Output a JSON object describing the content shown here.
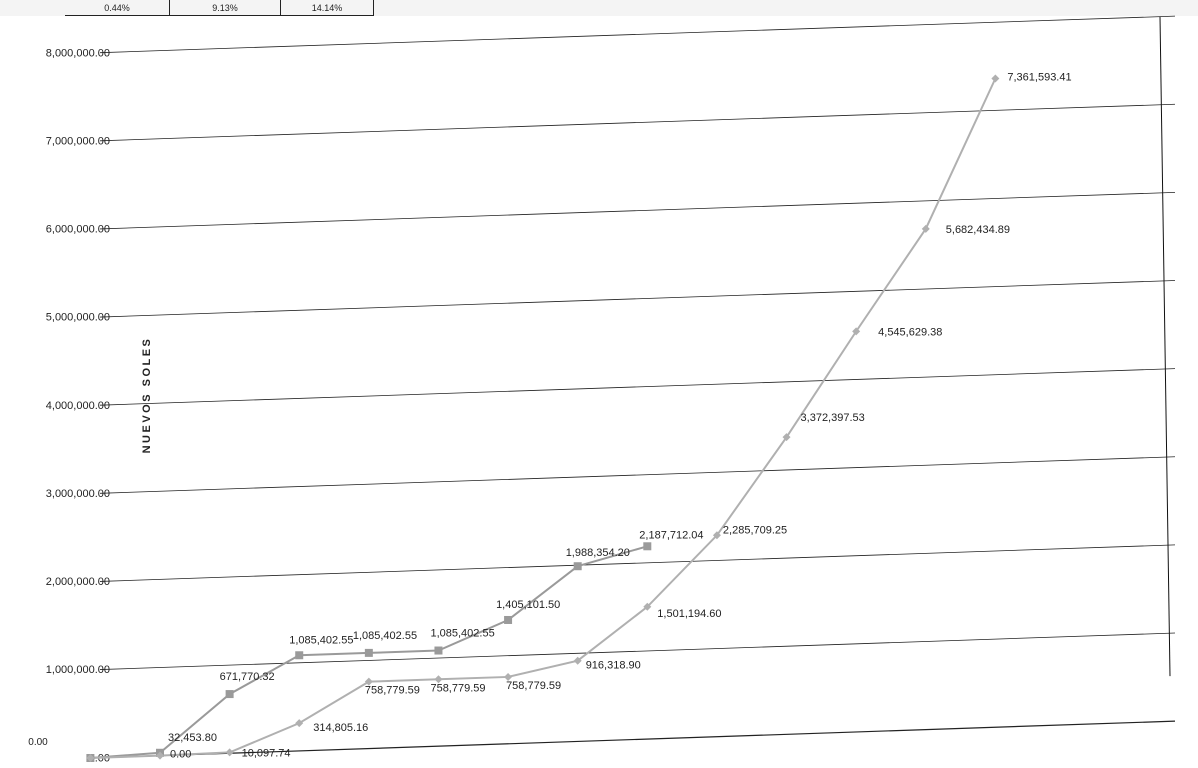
{
  "top_table": {
    "cells": [
      "0.44%",
      "9.13%",
      "14.14%"
    ]
  },
  "chart_data": {
    "type": "line",
    "title": "",
    "xlabel": "",
    "ylabel": "NUEVOS SOLES",
    "ylim": [
      0,
      8000000
    ],
    "y_ticks": [
      "0.00",
      "1,000,000.00",
      "2,000,000.00",
      "3,000,000.00",
      "4,000,000.00",
      "5,000,000.00",
      "6,000,000.00",
      "7,000,000.00",
      "8,000,000.00"
    ],
    "extra_tick_label": "0.00",
    "grid": true,
    "colors": {
      "series_square": "#9a9a9a",
      "series_diamond": "#b0b0b0",
      "grid": "#222222",
      "axis": "#111111"
    },
    "x_count": 15,
    "series": [
      {
        "marker": "square",
        "values": [
          0,
          32453.8,
          671770.32,
          1085402.55,
          1085402.55,
          1085402.55,
          1405101.5,
          1988354.2,
          2187712.04
        ],
        "labels": [
          "",
          "32,453.80",
          "671,770.32",
          "1,085,402.55",
          "1,085,402.55",
          "1,085,402.55",
          "1,405,101.50",
          "1,988,354.20",
          "2,187,712.04"
        ]
      },
      {
        "marker": "diamond",
        "values": [
          0,
          0,
          10097.74,
          314805.16,
          758779.59,
          758779.59,
          758779.59,
          916318.9,
          1501194.6,
          2285709.25,
          3372397.53,
          4545629.38,
          5682434.89,
          7361593.41
        ],
        "labels": [
          "",
          "0.00",
          "10,097.74",
          "314,805.16",
          "758,779.59",
          "758,779.59",
          "758,779.59",
          "916,318.90",
          "1,501,194.60",
          "2,285,709.25",
          "3,372,397.53",
          "4,545,629.38",
          "5,682,434.89",
          "7,361,593.41"
        ]
      }
    ]
  }
}
